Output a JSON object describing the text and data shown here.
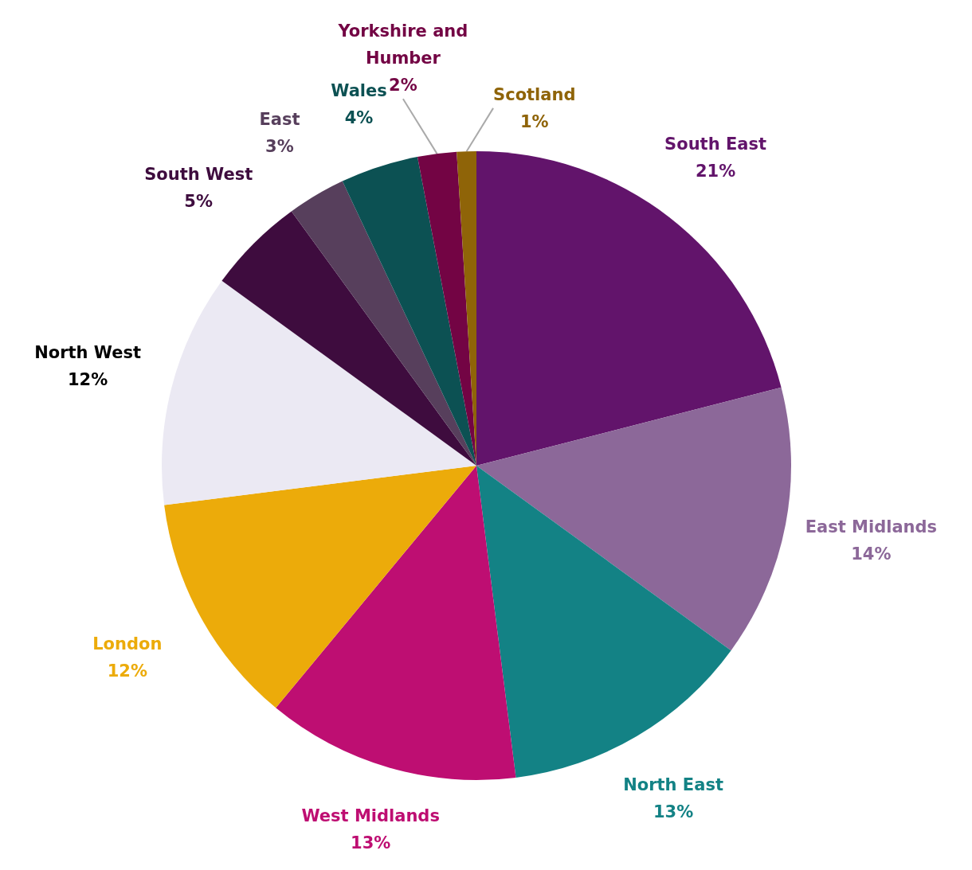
{
  "chart_data": {
    "type": "pie",
    "categories": [
      "South East",
      "East Midlands",
      "North East",
      "West Midlands",
      "London",
      "North West",
      "South West",
      "East",
      "Wales",
      "Yorkshire and\nHumber",
      "Scotland"
    ],
    "values": [
      21,
      14,
      13,
      13,
      12,
      12,
      5,
      3,
      4,
      2,
      1
    ],
    "value_labels": [
      "21%",
      "14%",
      "13%",
      "13%",
      "12%",
      "12%",
      "5%",
      "3%",
      "4%",
      "2%",
      "1%"
    ],
    "colors": [
      "#62146b",
      "#8c6899",
      "#138285",
      "#be0e72",
      "#ecab0a",
      "#ebe9f3",
      "#3e0c3e",
      "#573f5c",
      "#0c5153",
      "#730444",
      "#8f6408"
    ],
    "legend": false
  }
}
